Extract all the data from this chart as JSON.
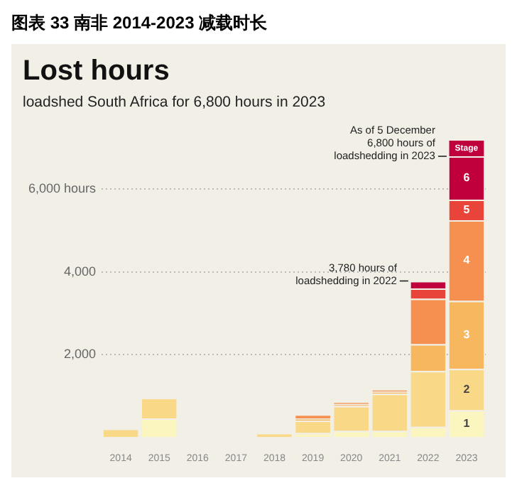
{
  "chart_data": {
    "type": "bar",
    "title": "Lost hours",
    "subtitle": "loadshed South Africa for 6,800 hours in 2023",
    "stacked": true,
    "legend": false,
    "grid": "y",
    "legend_title": "Stage",
    "annotations": [
      "图表 33 南非 2014-2023 减载时长",
      {
        "text": "As of 5 December\n6,800 hours of\nloadshedding in 2023",
        "x": "2023",
        "y": 6800
      },
      {
        "text": "3,780 hours of\nloadshedding in 2022",
        "x": "2022",
        "y": 3780
      }
    ],
    "categories": [
      "2014",
      "2015",
      "2016",
      "2017",
      "2018",
      "2019",
      "2020",
      "2021",
      "2022",
      "2023"
    ],
    "ylim": [
      0,
      6800
    ],
    "yticks": [
      {
        "value": 2000,
        "label": "2,000"
      },
      {
        "value": 4000,
        "label": "4,000"
      },
      {
        "value": 6000,
        "label": "6,000 hours"
      }
    ],
    "series": [
      {
        "name": "1",
        "color": "#fbf5c0",
        "values": [
          0,
          450,
          0,
          0,
          0,
          100,
          150,
          150,
          250,
          650
        ]
      },
      {
        "name": "2",
        "color": "#f9d888",
        "values": [
          200,
          500,
          0,
          0,
          100,
          300,
          600,
          900,
          1350,
          1000
        ]
      },
      {
        "name": "3",
        "color": "#f7b75f",
        "values": [
          0,
          0,
          0,
          0,
          0,
          50,
          50,
          50,
          650,
          1650
        ]
      },
      {
        "name": "4",
        "color": "#f59050",
        "values": [
          0,
          0,
          0,
          0,
          0,
          100,
          50,
          50,
          1100,
          1950
        ]
      },
      {
        "name": "5",
        "color": "#e8443a",
        "values": [
          0,
          0,
          0,
          0,
          0,
          0,
          0,
          0,
          250,
          500
        ]
      },
      {
        "name": "6",
        "color": "#c0003c",
        "values": [
          0,
          0,
          0,
          0,
          0,
          0,
          0,
          0,
          180,
          1050
        ]
      }
    ]
  }
}
